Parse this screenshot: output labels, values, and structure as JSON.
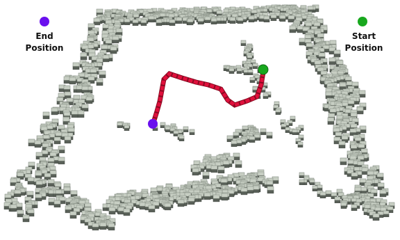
{
  "end_label": [
    "End",
    "Position"
  ],
  "start_label": [
    "Start",
    "Position"
  ]
}
